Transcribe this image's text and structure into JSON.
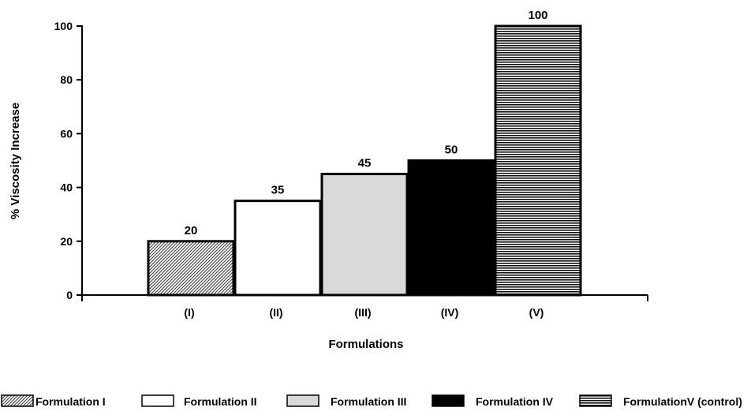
{
  "chart_data": {
    "type": "bar",
    "categories": [
      "(I)",
      "(II)",
      "(III)",
      "(IV)",
      "(V)"
    ],
    "values": [
      20,
      35,
      45,
      50,
      100
    ],
    "data_labels": [
      "20",
      "35",
      "45",
      "50",
      "100"
    ],
    "xlabel": "Formulations",
    "ylabel": "% Viscosity Increase",
    "ylim": [
      0,
      100
    ],
    "yticks": [
      0,
      20,
      40,
      60,
      80,
      100
    ],
    "grid": false,
    "legend_position": "bottom",
    "legend": [
      {
        "label": "Formulation I",
        "fill": "diagonal-hatch"
      },
      {
        "label": "Formulation II",
        "fill": "white"
      },
      {
        "label": "Formulation III",
        "fill": "light-gray"
      },
      {
        "label": "Formulation IV",
        "fill": "black"
      },
      {
        "label": "FormulationV (control)",
        "fill": "horizontal-lines"
      }
    ],
    "colors": {
      "axis": "#000000",
      "light_gray": "#d9d9d9",
      "black": "#000000",
      "white": "#ffffff"
    }
  }
}
